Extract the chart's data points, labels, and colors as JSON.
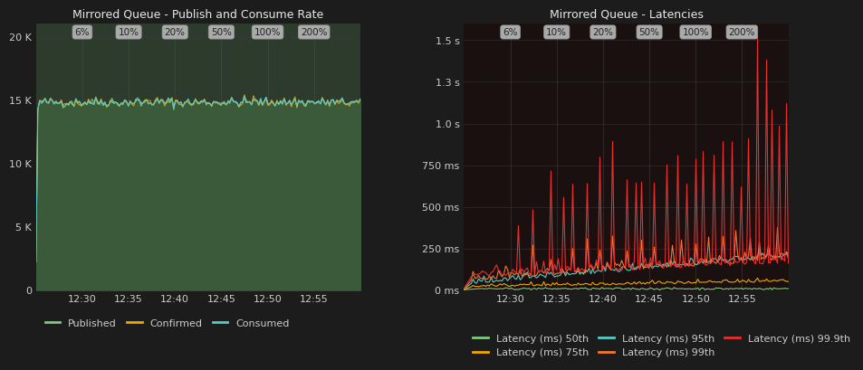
{
  "bg_color": "#1c1c1c",
  "plot_bg_color": "#2d3b2d",
  "plot_bg_color2": "#1a1010",
  "grid_color": "#3a3a3a",
  "text_color": "#cccccc",
  "title_color": "#e8e8e8",
  "left_title": "Mirrored Queue - Publish and Consume Rate",
  "right_title": "Mirrored Queue - Latencies",
  "phase_labels": [
    "6%",
    "10%",
    "20%",
    "50%",
    "100%",
    "200%"
  ],
  "left_yticks": [
    0,
    5000,
    10000,
    15000,
    20000
  ],
  "left_ytick_labels": [
    "0",
    "5 K",
    "10 K",
    "15 K",
    "20 K"
  ],
  "left_ylim": [
    0,
    21000
  ],
  "right_yticks": [
    0,
    250,
    500,
    750,
    1000,
    1250,
    1500
  ],
  "right_ytick_labels": [
    "0 ms",
    "250 ms",
    "500 ms",
    "750 ms",
    "1.0 s",
    "1.3 s",
    "1.5 s"
  ],
  "right_ylim": [
    0,
    1600
  ],
  "xtick_labels": [
    "12:30",
    "12:35",
    "12:40",
    "12:45",
    "12:50",
    "12:55"
  ],
  "left_legend": [
    "Published",
    "Confirmed",
    "Consumed"
  ],
  "left_legend_colors": [
    "#7fc97f",
    "#f0a500",
    "#5bc8c8"
  ],
  "right_legend": [
    "Latency (ms) 50th",
    "Latency (ms) 75th",
    "Latency (ms) 95th",
    "Latency (ms) 99th",
    "Latency (ms) 99.9th"
  ],
  "right_legend_colors": [
    "#7fc97f",
    "#f0a500",
    "#5bc8c8",
    "#f07830",
    "#e83030"
  ]
}
